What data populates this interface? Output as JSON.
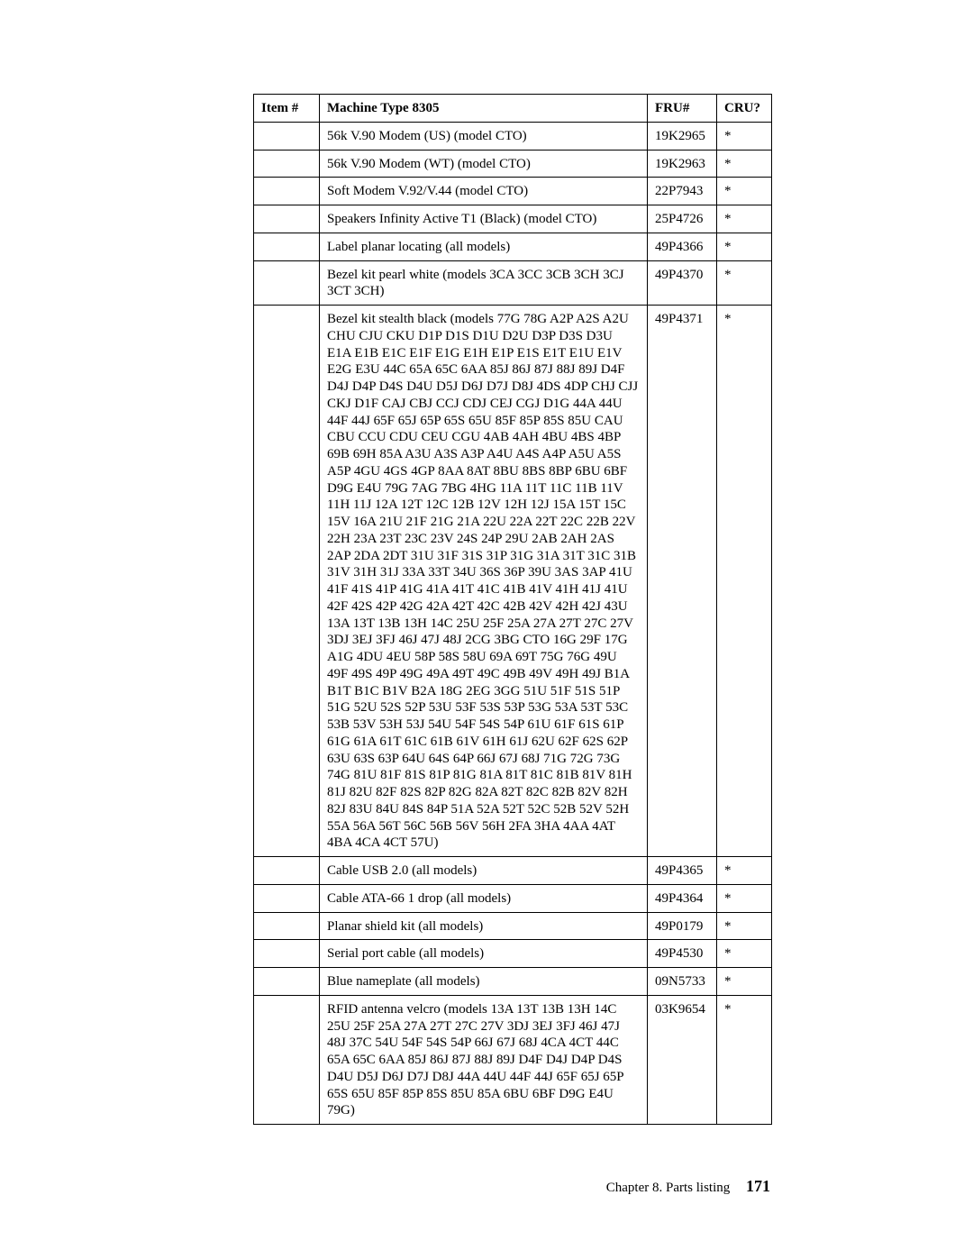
{
  "table": {
    "headers": {
      "item": "Item #",
      "desc": "Machine Type 8305",
      "fru": "FRU#",
      "cru": "CRU?"
    },
    "rows": [
      {
        "item": "",
        "desc": "56k V.90 Modem (US) (model CTO)",
        "fru": "19K2965",
        "cru": "*"
      },
      {
        "item": "",
        "desc": "56k V.90 Modem (WT) (model CTO)",
        "fru": "19K2963",
        "cru": "*"
      },
      {
        "item": "",
        "desc": "Soft Modem V.92/V.44 (model CTO)",
        "fru": "22P7943",
        "cru": "*"
      },
      {
        "item": "",
        "desc": "Speakers Infinity Active T1 (Black) (model CTO)",
        "fru": "25P4726",
        "cru": "*"
      },
      {
        "item": "",
        "desc": "Label planar locating (all models)",
        "fru": "49P4366",
        "cru": "*"
      },
      {
        "item": "",
        "desc": "Bezel kit pearl white (models 3CA 3CC 3CB 3CH 3CJ 3CT 3CH)",
        "fru": "49P4370",
        "cru": "*"
      },
      {
        "item": "",
        "desc": "Bezel kit stealth black (models 77G 78G A2P A2S A2U CHU CJU CKU D1P D1S D1U D2U D3P D3S D3U E1A E1B E1C E1F E1G E1H E1P E1S E1T E1U E1V E2G E3U 44C 65A 65C 6AA 85J 86J 87J 88J 89J D4F D4J D4P D4S D4U D5J D6J D7J D8J 4DS 4DP CHJ CJJ CKJ D1F CAJ CBJ CCJ CDJ CEJ CGJ D1G 44A 44U 44F 44J 65F 65J 65P 65S 65U 85F 85P 85S 85U CAU CBU CCU CDU CEU CGU 4AB 4AH 4BU 4BS 4BP 69B 69H 85A A3U A3S A3P A4U A4S A4P A5U A5S A5P 4GU 4GS 4GP 8AA 8AT 8BU 8BS 8BP 6BU 6BF D9G E4U 79G 7AG 7BG 4HG 11A 11T 11C 11B 11V 11H 11J 12A 12T 12C 12B 12V 12H 12J 15A 15T 15C 15V 16A 21U 21F 21G 21A 22U 22A 22T 22C 22B 22V 22H 23A 23T 23C 23V 24S 24P 29U 2AB 2AH 2AS 2AP 2DA 2DT 31U 31F 31S 31P 31G 31A 31T 31C 31B 31V 31H 31J 33A 33T 34U 36S 36P 39U 3AS 3AP 41U 41F 41S 41P 41G 41A 41T 41C 41B 41V 41H 41J 41U 42F 42S 42P 42G 42A 42T 42C 42B 42V 42H 42J 43U 13A 13T 13B 13H 14C 25U 25F 25A 27A 27T 27C 27V 3DJ 3EJ 3FJ 46J 47J 48J 2CG 3BG CTO 16G 29F 17G A1G 4DU 4EU 58P 58S 58U 69A 69T 75G 76G 49U 49F 49S 49P 49G 49A 49T 49C 49B 49V 49H 49J B1A B1T B1C B1V B2A 18G 2EG 3GG 51U 51F 51S 51P 51G 52U 52S 52P 53U 53F 53S 53P 53G 53A 53T 53C 53B 53V 53H 53J 54U 54F 54S 54P 61U 61F 61S 61P 61G 61A 61T 61C 61B 61V 61H 61J 62U 62F 62S 62P 63U 63S 63P 64U 64S 64P 66J 67J 68J 71G 72G 73G 74G 81U 81F 81S 81P 81G 81A 81T 81C 81B 81V 81H 81J 82U 82F 82S 82P 82G 82A 82T 82C 82B 82V 82H 82J 83U 84U 84S 84P 51A 52A 52T 52C 52B 52V 52H 55A 56A 56T 56C 56B 56V 56H 2FA 3HA 4AA 4AT 4BA 4CA 4CT 57U)",
        "fru": "49P4371",
        "cru": "*"
      },
      {
        "item": "",
        "desc": "Cable USB 2.0 (all models)",
        "fru": "49P4365",
        "cru": "*"
      },
      {
        "item": "",
        "desc": "Cable ATA-66 1 drop (all models)",
        "fru": "49P4364",
        "cru": "*"
      },
      {
        "item": "",
        "desc": "Planar shield kit (all models)",
        "fru": "49P0179",
        "cru": "*"
      },
      {
        "item": "",
        "desc": "Serial port cable (all models)",
        "fru": "49P4530",
        "cru": "*"
      },
      {
        "item": "",
        "desc": "Blue nameplate (all models)",
        "fru": "09N5733",
        "cru": "*"
      },
      {
        "item": "",
        "desc": "RFID antenna velcro (models 13A 13T 13B 13H 14C 25U 25F 25A 27A 27T 27C 27V 3DJ 3EJ 3FJ 46J 47J 48J 37C 54U 54F 54S 54P 66J 67J 68J 4CA 4CT 44C 65A 65C 6AA 85J 86J 87J 88J 89J D4F D4J D4P D4S D4U D5J D6J D7J D8J 44A 44U 44F 44J 65F 65J 65P 65S 65U 85F 85P 85S 85U 85A 6BU 6BF D9G E4U 79G)",
        "fru": "03K9654",
        "cru": "*"
      }
    ]
  },
  "footer": {
    "chapter": "Chapter 8. Parts listing",
    "page": "171"
  }
}
